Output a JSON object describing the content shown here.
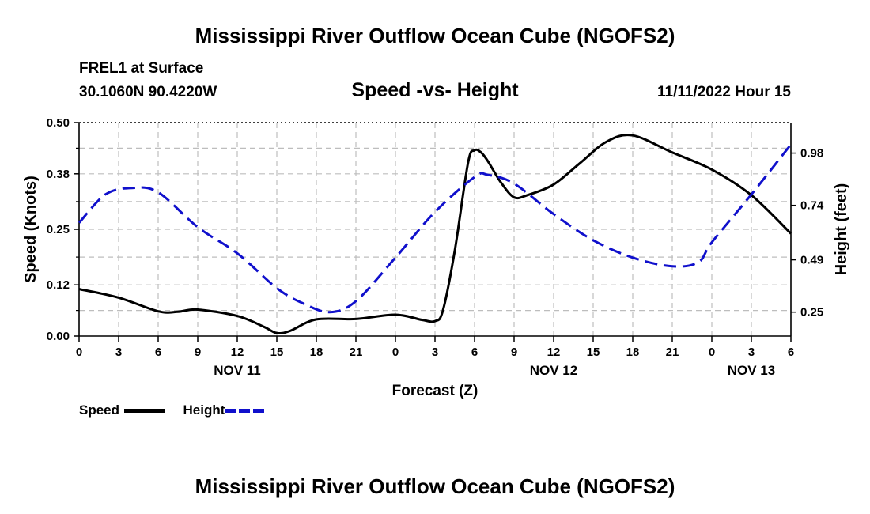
{
  "header": {
    "title": "Mississippi River Outflow Ocean Cube (NGOFS2)",
    "station": "FREL1 at Surface",
    "coords": "30.1060N  90.4220W",
    "chart_title": "Speed -vs- Height",
    "datetime": "11/11/2022 Hour 15"
  },
  "footer": {
    "title": "Mississippi River Outflow Ocean Cube (NGOFS2)"
  },
  "legend": {
    "speed": {
      "label": "Speed",
      "color": "#000000"
    },
    "height": {
      "label": "Height",
      "color": "#1010cc"
    }
  },
  "chart_data": {
    "type": "line",
    "title": "Speed -vs- Height",
    "xlabel": "Forecast (Z)",
    "ylabel": "Speed (Knots)",
    "y2label": "Height (feet)",
    "x_unit": "hours from NOV 11 00Z",
    "xlim": [
      0,
      54
    ],
    "ylim": [
      0,
      0.5
    ],
    "y2lim": [
      0.14,
      1.12
    ],
    "x_ticks": [
      0,
      3,
      6,
      9,
      12,
      15,
      18,
      21,
      24,
      27,
      30,
      33,
      36,
      39,
      42,
      45,
      48,
      51,
      54
    ],
    "x_tick_labels": [
      "0",
      "3",
      "6",
      "9",
      "12",
      "15",
      "18",
      "21",
      "0",
      "3",
      "6",
      "9",
      "12",
      "15",
      "18",
      "21",
      "0",
      "3",
      "6"
    ],
    "date_labels": [
      {
        "x": 12,
        "label": "NOV 11"
      },
      {
        "x": 36,
        "label": "NOV 12"
      },
      {
        "x": 51,
        "label": "NOV 13"
      }
    ],
    "y_ticks": [
      0.0,
      0.12,
      0.25,
      0.38,
      0.5
    ],
    "y_tick_labels": [
      "0.00",
      "0.12",
      "0.25",
      "0.38",
      "0.50"
    ],
    "y2_ticks": [
      0.25,
      0.49,
      0.74,
      0.98
    ],
    "y2_tick_labels": [
      "0.25",
      "0.49",
      "0.74",
      "0.98"
    ],
    "grid": true,
    "series": [
      {
        "name": "Speed",
        "axis": "left",
        "style": "solid",
        "color": "#000000",
        "x": [
          0,
          3,
          6,
          7.5,
          9,
          12,
          14,
          15,
          16,
          18,
          21,
          24,
          26,
          27,
          27.6,
          28.5,
          29.5,
          30,
          30.5,
          31,
          32,
          33,
          34,
          36,
          38,
          40,
          42,
          45,
          48,
          51,
          54
        ],
        "y": [
          0.11,
          0.09,
          0.058,
          0.057,
          0.062,
          0.047,
          0.022,
          0.007,
          0.012,
          0.039,
          0.04,
          0.05,
          0.038,
          0.035,
          0.06,
          0.2,
          0.405,
          0.435,
          0.43,
          0.41,
          0.36,
          0.325,
          0.33,
          0.355,
          0.405,
          0.455,
          0.47,
          0.43,
          0.39,
          0.33,
          0.24
        ]
      },
      {
        "name": "Height",
        "axis": "right",
        "style": "dashed",
        "color": "#1010cc",
        "x": [
          0,
          2,
          4,
          6,
          9,
          12,
          15,
          17,
          19,
          21,
          24,
          27,
          30,
          31,
          33,
          36,
          39,
          42,
          45,
          47,
          48,
          51,
          54
        ],
        "y": [
          0.66,
          0.79,
          0.82,
          0.8,
          0.64,
          0.52,
          0.36,
          0.29,
          0.25,
          0.3,
          0.5,
          0.71,
          0.87,
          0.88,
          0.84,
          0.7,
          0.58,
          0.5,
          0.46,
          0.48,
          0.57,
          0.79,
          1.02
        ]
      }
    ]
  }
}
